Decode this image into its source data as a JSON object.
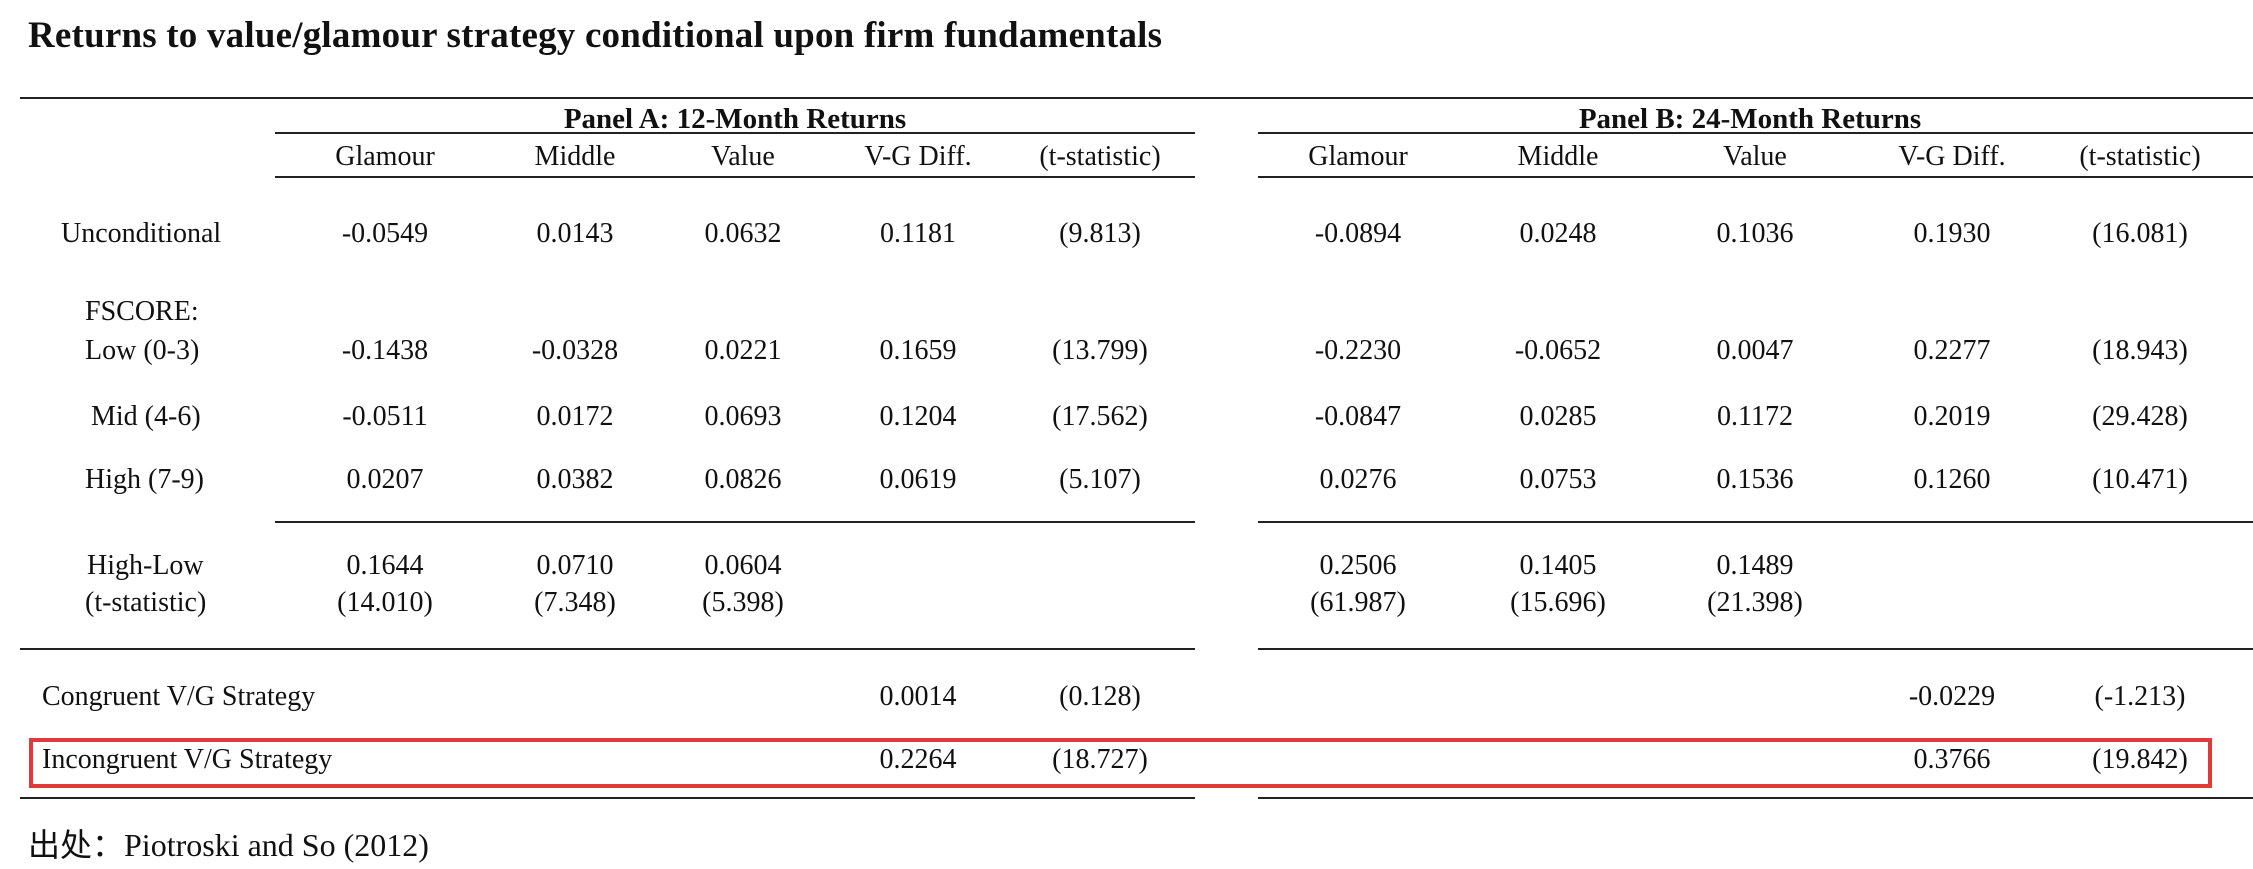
{
  "title": "Returns to value/glamour strategy conditional upon firm fundamentals",
  "panels": [
    {
      "heading": "Panel A:  12-Month Returns",
      "columns": [
        "Glamour",
        "Middle",
        "Value",
        "V-G Diff.",
        "(t-statistic)"
      ],
      "rows": [
        [
          "-0.0549",
          "0.0143",
          "0.0632",
          "0.1181",
          "(9.813)"
        ],
        [
          "-0.1438",
          "-0.0328",
          "0.0221",
          "0.1659",
          "(13.799)"
        ],
        [
          "-0.0511",
          "0.0172",
          "0.0693",
          "0.1204",
          "(17.562)"
        ],
        [
          "0.0207",
          "0.0382",
          "0.0826",
          "0.0619",
          "(5.107)"
        ]
      ],
      "high_low": [
        "0.1644",
        "0.0710",
        "0.0604"
      ],
      "high_low_t": [
        "(14.010)",
        "(7.348)",
        "(5.398)"
      ],
      "congruent": [
        "0.0014",
        "(0.128)"
      ],
      "incongruent": [
        "0.2264",
        "(18.727)"
      ]
    },
    {
      "heading": "Panel B: 24-Month Returns",
      "columns": [
        "Glamour",
        "Middle",
        "Value",
        "V-G Diff.",
        "(t-statistic)"
      ],
      "rows": [
        [
          "-0.0894",
          "0.0248",
          "0.1036",
          "0.1930",
          "(16.081)"
        ],
        [
          "-0.2230",
          "-0.0652",
          "0.0047",
          "0.2277",
          "(18.943)"
        ],
        [
          "-0.0847",
          "0.0285",
          "0.1172",
          "0.2019",
          "(29.428)"
        ],
        [
          "0.0276",
          "0.0753",
          "0.1536",
          "0.1260",
          "(10.471)"
        ]
      ],
      "high_low": [
        "0.2506",
        "0.1405",
        "0.1489"
      ],
      "high_low_t": [
        "(61.987)",
        "(15.696)",
        "(21.398)"
      ],
      "congruent": [
        "-0.0229",
        "(-1.213)"
      ],
      "incongruent": [
        "0.3766",
        "(19.842)"
      ]
    }
  ],
  "row_labels": {
    "unconditional": "Unconditional",
    "fscore": "FSCORE:",
    "low": "Low (0-3)",
    "mid": "Mid (4-6)",
    "high": "High (7-9)",
    "high_low": "High-Low",
    "t_stat": "(t-statistic)",
    "congruent": "Congruent V/G Strategy",
    "incongruent": "Incongruent V/G Strategy"
  },
  "source": "出处：Piotroski and So (2012)",
  "highlight_color": "#e23a3a"
}
